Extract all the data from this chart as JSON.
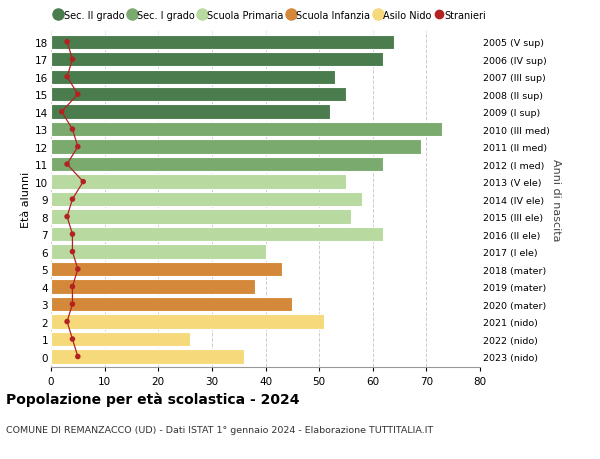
{
  "ages": [
    18,
    17,
    16,
    15,
    14,
    13,
    12,
    11,
    10,
    9,
    8,
    7,
    6,
    5,
    4,
    3,
    2,
    1,
    0
  ],
  "right_labels": [
    "2005 (V sup)",
    "2006 (IV sup)",
    "2007 (III sup)",
    "2008 (II sup)",
    "2009 (I sup)",
    "2010 (III med)",
    "2011 (II med)",
    "2012 (I med)",
    "2013 (V ele)",
    "2014 (IV ele)",
    "2015 (III ele)",
    "2016 (II ele)",
    "2017 (I ele)",
    "2018 (mater)",
    "2019 (mater)",
    "2020 (mater)",
    "2021 (nido)",
    "2022 (nido)",
    "2023 (nido)"
  ],
  "bar_values": [
    64,
    62,
    53,
    55,
    52,
    73,
    69,
    62,
    55,
    58,
    56,
    62,
    40,
    43,
    38,
    45,
    51,
    26,
    36
  ],
  "bar_colors": [
    "#4a7c4e",
    "#4a7c4e",
    "#4a7c4e",
    "#4a7c4e",
    "#4a7c4e",
    "#7aaa6e",
    "#7aaa6e",
    "#7aaa6e",
    "#b8d9a0",
    "#b8d9a0",
    "#b8d9a0",
    "#b8d9a0",
    "#b8d9a0",
    "#d4883a",
    "#d4883a",
    "#d4883a",
    "#f5d97a",
    "#f5d97a",
    "#f5d97a"
  ],
  "stranieri_values": [
    3,
    4,
    3,
    5,
    2,
    4,
    5,
    3,
    6,
    4,
    3,
    4,
    4,
    5,
    4,
    4,
    3,
    4,
    5
  ],
  "legend_labels": [
    "Sec. II grado",
    "Sec. I grado",
    "Scuola Primaria",
    "Scuola Infanzia",
    "Asilo Nido",
    "Stranieri"
  ],
  "legend_colors": [
    "#4a7c4e",
    "#7aaa6e",
    "#b8d9a0",
    "#d4883a",
    "#f5d97a",
    "#b22222"
  ],
  "title": "Popolazione per età scolastica - 2024",
  "subtitle": "COMUNE DI REMANZACCO (UD) - Dati ISTAT 1° gennaio 2024 - Elaborazione TUTTITALIA.IT",
  "ylabel_left": "Età alunni",
  "ylabel_right": "Anni di nascita",
  "xlim": [
    0,
    80
  ],
  "xticks": [
    0,
    10,
    20,
    30,
    40,
    50,
    60,
    70,
    80
  ],
  "background_color": "#ffffff",
  "grid_color": "#cccccc",
  "bar_height": 0.82,
  "stranieri_color": "#b22222",
  "stranieri_linecolor": "#b22222"
}
